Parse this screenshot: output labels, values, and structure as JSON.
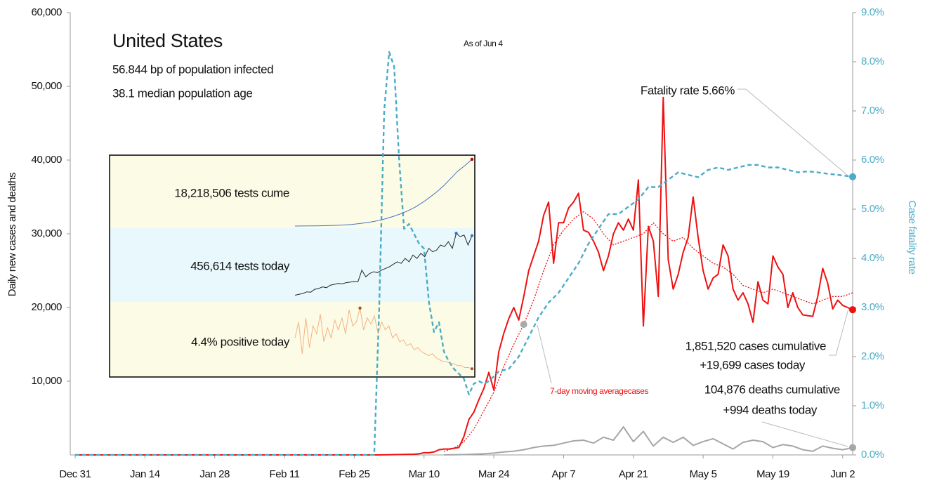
{
  "chart_data": [
    {
      "type": "line",
      "title": "United States",
      "subtitle": [
        "56.844 bp of population infected",
        "38.1 median population age"
      ],
      "date_note": "As of Jun 4",
      "y_label": "Daily new cases and deaths",
      "y2_label": "Case fatality rate",
      "annotations": [
        "Fatality rate 5.66%",
        "1,851,520 cases cumulative",
        "+19,699 cases today",
        "104,876 deaths cumulative",
        "+994 deaths today"
      ],
      "xlim": [
        "Dec 31",
        "Jun 4"
      ],
      "xticks": [
        "Dec 31",
        "Jan 14",
        "Jan 28",
        "Feb 11",
        "Feb 25",
        "Mar 10",
        "Mar 24",
        "Apr 7",
        "Apr 21",
        "May 5",
        "May 19",
        "Jun 2"
      ],
      "ylim": [
        0,
        60000
      ],
      "yticks": [
        {
          "value": 10000,
          "label": "10,000"
        },
        {
          "value": 20000,
          "label": "20,000"
        },
        {
          "value": 30000,
          "label": "30,000"
        },
        {
          "value": 40000,
          "label": "40,000"
        },
        {
          "value": 50000,
          "label": "50,000"
        },
        {
          "value": 60000,
          "label": "60,000"
        }
      ],
      "y2lim": [
        0,
        9
      ],
      "y2ticks": [
        {
          "value": 0,
          "label": "0.0%"
        },
        {
          "value": 1,
          "label": "1.0%"
        },
        {
          "value": 2,
          "label": "2.0%"
        },
        {
          "value": 3,
          "label": "3.0%"
        },
        {
          "value": 4,
          "label": "4.0%"
        },
        {
          "value": 5,
          "label": "5.0%"
        },
        {
          "value": 6,
          "label": "6.0%"
        },
        {
          "value": 7,
          "label": "7.0%"
        },
        {
          "value": 8,
          "label": "8.0%"
        },
        {
          "value": 9,
          "label": "9.0%"
        }
      ],
      "grid": false,
      "series": [
        {
          "color": "#ee1111",
          "line_style": "solid",
          "x": [
            "Dec 31",
            "Mar 1",
            "Mar 8",
            "Mar 9",
            "Mar 10",
            "Mar 11",
            "Mar 12",
            "Mar 13",
            "Mar 14",
            "Mar 15",
            "Mar 16",
            "Mar 17",
            "Mar 18",
            "Mar 19",
            "Mar 20",
            "Mar 21",
            "Mar 22",
            "Mar 23",
            "Mar 24",
            "Mar 25",
            "Mar 26",
            "Mar 27",
            "Mar 28",
            "Mar 29",
            "Mar 30",
            "Mar 31",
            "Apr 1",
            "Apr 2",
            "Apr 3",
            "Apr 4",
            "Apr 5",
            "Apr 6",
            "Apr 7",
            "Apr 8",
            "Apr 9",
            "Apr 10",
            "Apr 11",
            "Apr 12",
            "Apr 13",
            "Apr 14",
            "Apr 15",
            "Apr 16",
            "Apr 17",
            "Apr 18",
            "Apr 19",
            "Apr 20",
            "Apr 21",
            "Apr 22",
            "Apr 23",
            "Apr 24",
            "Apr 25",
            "Apr 26",
            "Apr 27",
            "Apr 28",
            "Apr 29",
            "Apr 30",
            "May 1",
            "May 2",
            "May 3",
            "May 4",
            "May 5",
            "May 6",
            "May 7",
            "May 8",
            "May 9",
            "May 10",
            "May 11",
            "May 12",
            "May 13",
            "May 14",
            "May 15",
            "May 16",
            "May 17",
            "May 18",
            "May 19",
            "May 20",
            "May 21",
            "May 22",
            "May 23",
            "May 24",
            "May 25",
            "May 26",
            "May 27",
            "May 28",
            "May 29",
            "May 30",
            "May 31",
            "Jun 1",
            "Jun 2",
            "Jun 3",
            "Jun 4"
          ],
          "values": [
            0,
            0,
            100,
            150,
            300,
            300,
            400,
            700,
            800,
            800,
            900,
            1000,
            2500,
            4800,
            5800,
            7500,
            9000,
            11200,
            8800,
            14000,
            16500,
            18500,
            20000,
            18300,
            21500,
            25000,
            27000,
            29000,
            32500,
            34300,
            26000,
            31500,
            31500,
            33500,
            34300,
            35500,
            30500,
            30200,
            29000,
            27500,
            25000,
            27000,
            30000,
            31500,
            30500,
            32000,
            30500,
            37300,
            17500,
            31000,
            29000,
            21500,
            48500,
            26500,
            22500,
            24500,
            27500,
            29500,
            35000,
            29500,
            25000,
            22500,
            24000,
            24500,
            28500,
            27000,
            22500,
            21000,
            22000,
            20500,
            18000,
            23500,
            21000,
            20500,
            27000,
            25500,
            24500,
            20000,
            22000,
            20000,
            19000,
            18900,
            18800,
            21500,
            25300,
            23300,
            19800,
            21000,
            20300,
            20000,
            19699
          ]
        },
        {
          "name": "7-day moving averagecases",
          "color": "#ee1111",
          "line_style": "dotted",
          "x": [
            "Mar 14",
            "Mar 16",
            "Mar 18",
            "Mar 20",
            "Mar 22",
            "Mar 24",
            "Mar 26",
            "Mar 28",
            "Mar 30",
            "Apr 1",
            "Apr 3",
            "Apr 5",
            "Apr 7",
            "Apr 9",
            "Apr 11",
            "Apr 13",
            "Apr 15",
            "Apr 17",
            "Apr 19",
            "Apr 21",
            "Apr 23",
            "Apr 25",
            "Apr 27",
            "Apr 29",
            "May 1",
            "May 3",
            "May 5",
            "May 7",
            "May 9",
            "May 11",
            "May 13",
            "May 15",
            "May 17",
            "May 19",
            "May 21",
            "May 23",
            "May 25",
            "May 27",
            "May 29",
            "May 31",
            "Jun 2",
            "Jun 4"
          ],
          "values": [
            500,
            900,
            1800,
            3500,
            6000,
            8500,
            12000,
            15000,
            17700,
            21000,
            25000,
            28500,
            30500,
            32000,
            33000,
            32000,
            30000,
            28500,
            29000,
            29500,
            30000,
            31500,
            30000,
            29000,
            29500,
            28000,
            27000,
            26000,
            25500,
            24500,
            23000,
            22500,
            22000,
            22500,
            22000,
            21500,
            21000,
            20500,
            21000,
            21500,
            21500,
            22000
          ]
        },
        {
          "color": "#a6a6a6",
          "line_style": "solid",
          "x": [
            "Mar 14",
            "Mar 16",
            "Mar 18",
            "Mar 20",
            "Mar 22",
            "Mar 24",
            "Mar 26",
            "Mar 28",
            "Mar 30",
            "Apr 1",
            "Apr 3",
            "Apr 5",
            "Apr 7",
            "Apr 9",
            "Apr 11",
            "Apr 13",
            "Apr 15",
            "Apr 17",
            "Apr 19",
            "Apr 21",
            "Apr 23",
            "Apr 25",
            "Apr 27",
            "Apr 29",
            "May 1",
            "May 3",
            "May 5",
            "May 7",
            "May 9",
            "May 11",
            "May 13",
            "May 15",
            "May 17",
            "May 19",
            "May 21",
            "May 23",
            "May 25",
            "May 27",
            "May 29",
            "May 31",
            "Jun 2",
            "Jun 4"
          ],
          "values": [
            10,
            20,
            50,
            100,
            150,
            250,
            400,
            500,
            700,
            1000,
            1200,
            1300,
            1600,
            1900,
            2000,
            1600,
            2400,
            2000,
            3800,
            1800,
            3200,
            1200,
            2400,
            1700,
            2400,
            1300,
            1800,
            2200,
            1500,
            800,
            1700,
            2000,
            1800,
            1000,
            1400,
            1200,
            700,
            500,
            1200,
            900,
            700,
            994
          ]
        },
        {
          "color": "#4bacc6",
          "line_style": "dashed",
          "axis": "y2",
          "x": [
            "Dec 31",
            "Feb 29",
            "Mar 1",
            "Mar 2",
            "Mar 3",
            "Mar 4",
            "Mar 5",
            "Mar 6",
            "Mar 7",
            "Mar 8",
            "Mar 9",
            "Mar 10",
            "Mar 11",
            "Mar 12",
            "Mar 13",
            "Mar 14",
            "Mar 15",
            "Mar 16",
            "Mar 17",
            "Mar 18",
            "Mar 19",
            "Mar 20",
            "Mar 21",
            "Mar 22",
            "Mar 23",
            "Mar 25",
            "Mar 27",
            "Mar 29",
            "Mar 31",
            "Apr 2",
            "Apr 4",
            "Apr 6",
            "Apr 8",
            "Apr 10",
            "Apr 12",
            "Apr 14",
            "Apr 16",
            "Apr 18",
            "Apr 20",
            "Apr 22",
            "Apr 24",
            "Apr 26",
            "Apr 28",
            "Apr 30",
            "May 2",
            "May 4",
            "May 6",
            "May 8",
            "May 10",
            "May 12",
            "May 14",
            "May 16",
            "May 18",
            "May 20",
            "May 22",
            "May 24",
            "May 26",
            "May 28",
            "May 30",
            "Jun 1",
            "Jun 4"
          ],
          "values": [
            0,
            0,
            3.0,
            7.0,
            8.2,
            7.9,
            6.0,
            4.6,
            4.7,
            4.5,
            4.3,
            4.2,
            3.1,
            2.5,
            2.7,
            2.1,
            1.9,
            1.75,
            1.65,
            1.55,
            1.23,
            1.45,
            1.5,
            1.45,
            1.5,
            1.7,
            1.75,
            2.0,
            2.4,
            2.8,
            3.1,
            3.3,
            3.6,
            3.9,
            4.3,
            4.6,
            4.9,
            4.9,
            5.05,
            5.2,
            5.45,
            5.45,
            5.6,
            5.75,
            5.7,
            5.65,
            5.8,
            5.85,
            5.8,
            5.85,
            5.9,
            5.9,
            5.85,
            5.85,
            5.8,
            5.75,
            5.77,
            5.75,
            5.72,
            5.7,
            5.66
          ]
        }
      ]
    },
    {
      "type": "sparkline",
      "title": "18,218,506 tests cume",
      "color": "#4472c4",
      "ylim": [
        0,
        18400000
      ],
      "values": [
        0,
        10000,
        30000,
        60000,
        100000,
        150000,
        220000,
        300000,
        450000,
        650000,
        900000,
        1200000,
        1600000,
        2100000,
        2700000,
        3400000,
        4200000,
        5200000,
        6400000,
        7800000,
        9300000,
        11000000,
        13000000,
        15000000,
        16500000,
        18218506
      ]
    },
    {
      "type": "sparkline",
      "title": "456,614 tests today",
      "color": "#262626",
      "ylim": [
        60000,
        480000
      ],
      "values": [
        100000,
        105000,
        110000,
        120000,
        118000,
        135000,
        140000,
        150000,
        145000,
        160000,
        165000,
        170000,
        168000,
        175000,
        178000,
        182000,
        180000,
        250000,
        210000,
        230000,
        240000,
        235000,
        250000,
        260000,
        270000,
        285000,
        300000,
        290000,
        320000,
        300000,
        340000,
        320000,
        350000,
        330000,
        380000,
        360000,
        370000,
        400000,
        390000,
        420000,
        380000,
        470000,
        450000,
        460000,
        400000,
        456614
      ]
    },
    {
      "type": "sparkline",
      "title": "4.4% positive today",
      "color": "#f4b183",
      "ylim": [
        2,
        36
      ],
      "values": [
        20,
        28,
        12,
        30,
        15,
        26,
        22,
        32,
        18,
        25,
        20,
        29,
        24,
        30,
        22,
        34,
        26,
        28,
        35,
        24,
        30,
        27,
        31,
        22,
        28,
        24,
        26,
        20,
        22,
        18,
        19,
        16,
        17,
        14,
        15,
        13,
        12,
        11,
        12,
        10,
        9,
        8,
        8,
        7,
        7,
        6,
        6,
        5,
        5,
        4.4
      ]
    }
  ]
}
